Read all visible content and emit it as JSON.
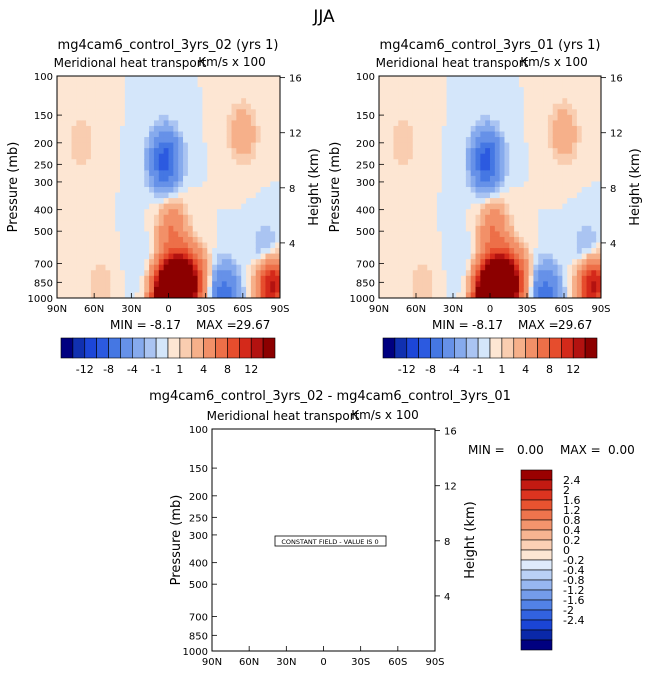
{
  "page_title": "JJA",
  "colors": {
    "bluescale": [
      "#000080",
      "#1030b0",
      "#1c46d8",
      "#2c5ae0",
      "#4577e3",
      "#6691e8",
      "#86aaed",
      "#aac4f2",
      "#d4e6fa"
    ],
    "redscale": [
      "#fde6d3",
      "#f9cdb0",
      "#f6b08a",
      "#f29068",
      "#ed6f48",
      "#e64d2d",
      "#d4291a",
      "#b31210",
      "#8c0000"
    ],
    "diff_bluescale": [
      "#000080",
      "#0a28a8",
      "#1b45d6",
      "#3262e0",
      "#5282e6",
      "#749ceb",
      "#97b7f0",
      "#bad1f5",
      "#deebfb"
    ],
    "diff_redscale": [
      "#fde6d3",
      "#fbd0b5",
      "#f7b491",
      "#f3946d",
      "#ee744d",
      "#e85330",
      "#dc3420",
      "#c21a12",
      "#9a0000"
    ]
  },
  "chart_data": [
    {
      "type": "heatmap",
      "title": "mg4cam6_control_3yrs_02 (yrs 1)",
      "subtitle": "Meridional heat transport",
      "units": "Km/s x 100",
      "xlabel": "",
      "ylabel": "Pressure (mb)",
      "ylabel_right": "Height (km)",
      "x_ticks": [
        "90N",
        "60N",
        "30N",
        "0",
        "30S",
        "60S",
        "90S"
      ],
      "y_ticks": [
        "100",
        "150",
        "200",
        "250",
        "300",
        "400",
        "500",
        "700",
        "850",
        "1000"
      ],
      "y_ticks_right": [
        "16",
        "12",
        "8",
        "4"
      ],
      "ylim": [
        1000,
        100
      ],
      "ylog": true,
      "min_label": "MIN =",
      "min_value": "-8.17",
      "max_label": "MAX =",
      "max_value": "29.67",
      "colorbar_labels": [
        "-12",
        "-8",
        "-4",
        "-1",
        "1",
        "4",
        "8",
        "12"
      ],
      "features": [
        {
          "lat": 0,
          "p": 960,
          "value": 28
        },
        {
          "lat": -10,
          "p": 880,
          "value": 20
        },
        {
          "lat": -3,
          "p": 500,
          "value": 4
        },
        {
          "lat": -20,
          "p": 820,
          "value": 6
        },
        {
          "lat": -60,
          "p": 180,
          "value": 2
        },
        {
          "lat": 3,
          "p": 240,
          "value": -7
        },
        {
          "lat": -45,
          "p": 960,
          "value": -5
        },
        {
          "lat": -80,
          "p": 680,
          "value": -3
        },
        {
          "lat": -83,
          "p": 860,
          "value": 12
        },
        {
          "lat": 55,
          "p": 900,
          "value": 1
        },
        {
          "lat": 70,
          "p": 200,
          "value": 1
        },
        {
          "lat": 20,
          "p": 700,
          "value": -0.5
        }
      ]
    },
    {
      "type": "heatmap",
      "title": "mg4cam6_control_3yrs_01 (yrs 1)",
      "subtitle": "Meridional heat transport",
      "units": "Km/s x 100",
      "xlabel": "",
      "ylabel": "Pressure (mb)",
      "ylabel_right": "Height (km)",
      "x_ticks": [
        "90N",
        "60N",
        "30N",
        "0",
        "30S",
        "60S",
        "90S"
      ],
      "y_ticks": [
        "100",
        "150",
        "200",
        "250",
        "300",
        "400",
        "500",
        "700",
        "850",
        "1000"
      ],
      "y_ticks_right": [
        "16",
        "12",
        "8",
        "4"
      ],
      "ylim": [
        1000,
        100
      ],
      "ylog": true,
      "min_label": "MIN =",
      "min_value": "-8.17",
      "max_label": "MAX =",
      "max_value": "29.67",
      "colorbar_labels": [
        "-12",
        "-8",
        "-4",
        "-1",
        "1",
        "4",
        "8",
        "12"
      ],
      "features": [
        {
          "lat": 0,
          "p": 960,
          "value": 28
        },
        {
          "lat": -10,
          "p": 880,
          "value": 20
        },
        {
          "lat": -3,
          "p": 500,
          "value": 4
        },
        {
          "lat": -20,
          "p": 820,
          "value": 6
        },
        {
          "lat": -60,
          "p": 180,
          "value": 2
        },
        {
          "lat": 3,
          "p": 240,
          "value": -7
        },
        {
          "lat": -45,
          "p": 960,
          "value": -5
        },
        {
          "lat": -80,
          "p": 680,
          "value": -3
        },
        {
          "lat": -83,
          "p": 860,
          "value": 12
        },
        {
          "lat": 55,
          "p": 900,
          "value": 1
        },
        {
          "lat": 70,
          "p": 200,
          "value": 1
        },
        {
          "lat": 20,
          "p": 700,
          "value": -0.5
        }
      ]
    },
    {
      "type": "heatmap",
      "title": "mg4cam6_control_3yrs_02 - mg4cam6_control_3yrs_01",
      "subtitle": "Meridional heat transport",
      "units": "Km/s x 100",
      "xlabel": "",
      "ylabel": "Pressure (mb)",
      "ylabel_right": "Height (km)",
      "x_ticks": [
        "90N",
        "60N",
        "30N",
        "0",
        "30S",
        "60S",
        "90S"
      ],
      "y_ticks": [
        "100",
        "150",
        "200",
        "250",
        "300",
        "400",
        "500",
        "700",
        "850",
        "1000"
      ],
      "y_ticks_right": [
        "16",
        "12",
        "8",
        "4"
      ],
      "ylim": [
        1000,
        100
      ],
      "ylog": true,
      "min_label": "MIN =",
      "min_value": "0.00",
      "max_label": "MAX =",
      "max_value": "0.00",
      "constant_field_text": "CONSTANT FIELD - VALUE IS 0",
      "colorbar_labels": [
        "2.4",
        "2",
        "1.6",
        "1.2",
        "0.8",
        "0.4",
        "0.2",
        "0",
        "-0.2",
        "-0.4",
        "-0.8",
        "-1.2",
        "-1.6",
        "-2",
        "-2.4"
      ],
      "value": 0
    }
  ]
}
